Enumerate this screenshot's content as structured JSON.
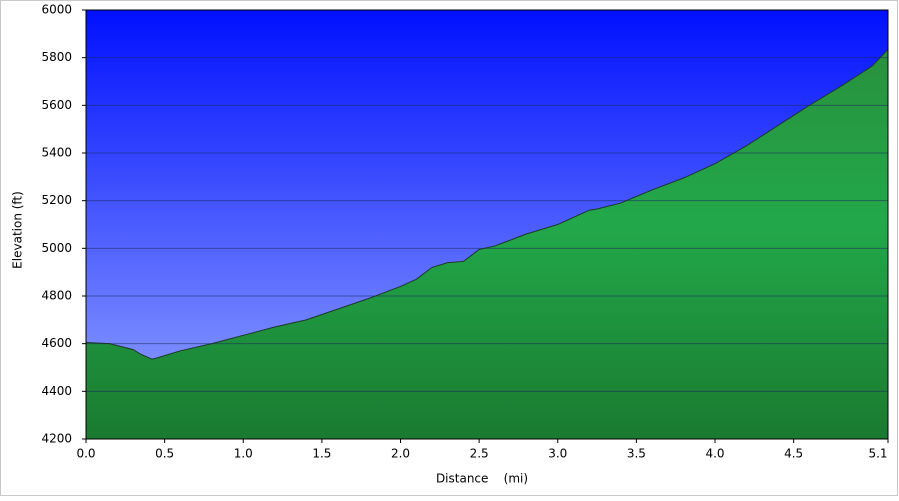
{
  "chart_data": {
    "type": "area",
    "xlabel": "Distance    (mi)",
    "ylabel": "Elevation (ft)",
    "x": [
      0,
      0.15,
      0.3,
      0.35,
      0.42,
      0.45,
      0.6,
      0.8,
      1.0,
      1.2,
      1.4,
      1.6,
      1.8,
      2.0,
      2.1,
      2.2,
      2.3,
      2.4,
      2.5,
      2.6,
      2.7,
      2.8,
      3.0,
      3.2,
      3.25,
      3.4,
      3.6,
      3.8,
      4.0,
      4.2,
      4.4,
      4.6,
      4.8,
      5.0,
      5.1
    ],
    "series": [
      {
        "color": "#22a84a",
        "values": [
          4605,
          4600,
          4575,
          4555,
          4535,
          4540,
          4570,
          4600,
          4635,
          4670,
          4700,
          4745,
          4790,
          4840,
          4870,
          4920,
          4940,
          4945,
          4995,
          5010,
          5035,
          5060,
          5100,
          5160,
          5165,
          5190,
          5245,
          5295,
          5355,
          5430,
          5515,
          5600,
          5680,
          5765,
          5835
        ]
      }
    ],
    "xlim": [
      0,
      5.1
    ],
    "xticks": [
      {
        "value": 0,
        "label": "0.0"
      },
      0.5,
      {
        "value": 1,
        "label": "1.0"
      },
      1.5,
      {
        "value": 2,
        "label": "2.0"
      },
      2.5,
      {
        "value": 3,
        "label": "3.0"
      },
      3.5,
      {
        "value": 4,
        "label": "4.0"
      },
      4.5,
      5.1
    ],
    "ylim": [
      4200,
      6000
    ],
    "yticks": [
      4200,
      4400,
      4600,
      4800,
      5000,
      5200,
      5400,
      5600,
      5800,
      6000
    ],
    "grid": true
  }
}
